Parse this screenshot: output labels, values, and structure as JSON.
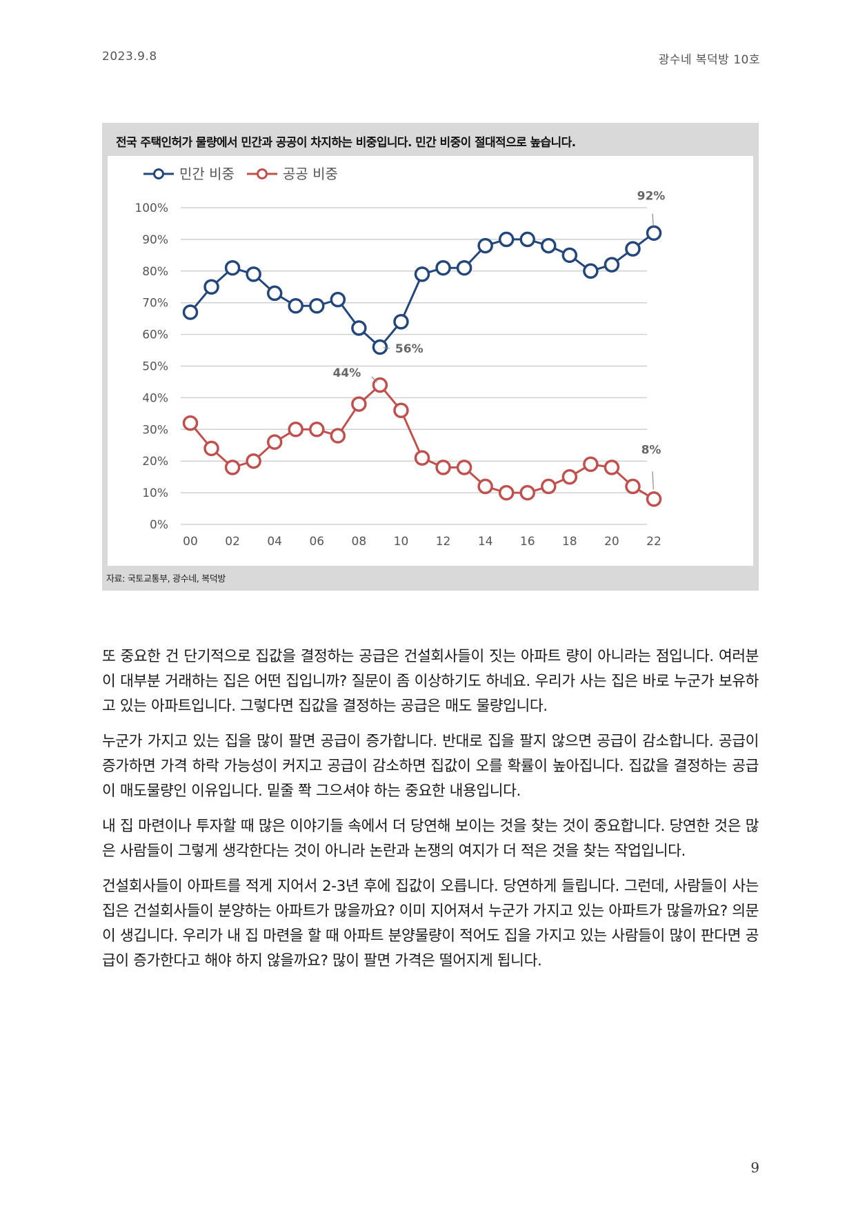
{
  "header": {
    "date": "2023.9.8",
    "publication": "광수네 복덕방 10호"
  },
  "figure": {
    "title": "전국 주택인허가 물량에서 민간과 공공이 차지하는 비중입니다. 민간 비중이 절대적으로 높습니다.",
    "source": "자료: 국토교통부, 광수네, 복덕방"
  },
  "chart_data": {
    "type": "line",
    "x": [
      2000,
      2001,
      2002,
      2003,
      2004,
      2005,
      2006,
      2007,
      2008,
      2009,
      2010,
      2011,
      2012,
      2013,
      2014,
      2015,
      2016,
      2017,
      2018,
      2019,
      2020,
      2021,
      2022
    ],
    "x_tick_labels": [
      "00",
      "02",
      "04",
      "06",
      "08",
      "10",
      "12",
      "14",
      "16",
      "18",
      "20",
      "22"
    ],
    "y_tick_labels": [
      "100%",
      "90%",
      "80%",
      "70%",
      "60%",
      "50%",
      "40%",
      "30%",
      "20%",
      "10%",
      "0%"
    ],
    "ylim": [
      0,
      100
    ],
    "grid": true,
    "legend_position": "top-left",
    "series": [
      {
        "name": "민간 비중",
        "color": "#23477a",
        "values": [
          67,
          75,
          81,
          79,
          73,
          69,
          69,
          71,
          62,
          56,
          64,
          79,
          81,
          81,
          88,
          90,
          90,
          88,
          85,
          80,
          82,
          87,
          92
        ]
      },
      {
        "name": "공공 비중",
        "color": "#c0504d",
        "values": [
          32,
          24,
          18,
          20,
          26,
          30,
          30,
          28,
          38,
          44,
          36,
          21,
          18,
          18,
          12,
          10,
          10,
          12,
          15,
          19,
          18,
          12,
          8
        ]
      }
    ],
    "annotations": [
      {
        "series": 0,
        "index": 22,
        "text": "92%"
      },
      {
        "series": 0,
        "index": 9,
        "text": "56%"
      },
      {
        "series": 1,
        "index": 9,
        "text": "44%"
      },
      {
        "series": 1,
        "index": 22,
        "text": "8%"
      }
    ]
  },
  "paragraphs": [
    "또 중요한 건 단기적으로 집값을 결정하는 공급은 건설회사들이 짓는 아파트 량이 아니라는 점입니다. 여러분이 대부분 거래하는 집은 어떤 집입니까? 질문이 좀 이상하기도 하네요. 우리가 사는 집은 바로 누군가 보유하고 있는 아파트입니다. 그렇다면 집값을 결정하는 공급은 매도 물량입니다.",
    "누군가 가지고 있는 집을 많이 팔면 공급이 증가합니다. 반대로 집을 팔지 않으면 공급이 감소합니다. 공급이 증가하면 가격 하락 가능성이 커지고 공급이 감소하면 집값이 오를 확률이 높아집니다. 집값을 결정하는 공급이 매도물량인 이유입니다. 밑줄 쫙 그으셔야 하는 중요한 내용입니다.",
    "내 집 마련이나 투자할 때 많은 이야기들 속에서 더 당연해 보이는 것을 찾는 것이 중요합니다. 당연한 것은 많은 사람들이 그렇게 생각한다는 것이 아니라 논란과 논쟁의 여지가 더 적은 것을 찾는 작업입니다.",
    "건설회사들이 아파트를 적게 지어서 2-3년 후에 집값이 오릅니다. 당연하게 들립니다. 그런데, 사람들이 사는 집은 건설회사들이 분양하는 아파트가 많을까요? 이미 지어져서 누군가 가지고 있는 아파트가 많을까요? 의문이 생깁니다. 우리가 내 집 마련을 할 때 아파트 분양물량이 적어도 집을 가지고 있는 사람들이 많이 판다면 공급이 증가한다고 해야 하지 않을까요? 많이 팔면 가격은 떨어지게 됩니다."
  ],
  "page_number": "9"
}
